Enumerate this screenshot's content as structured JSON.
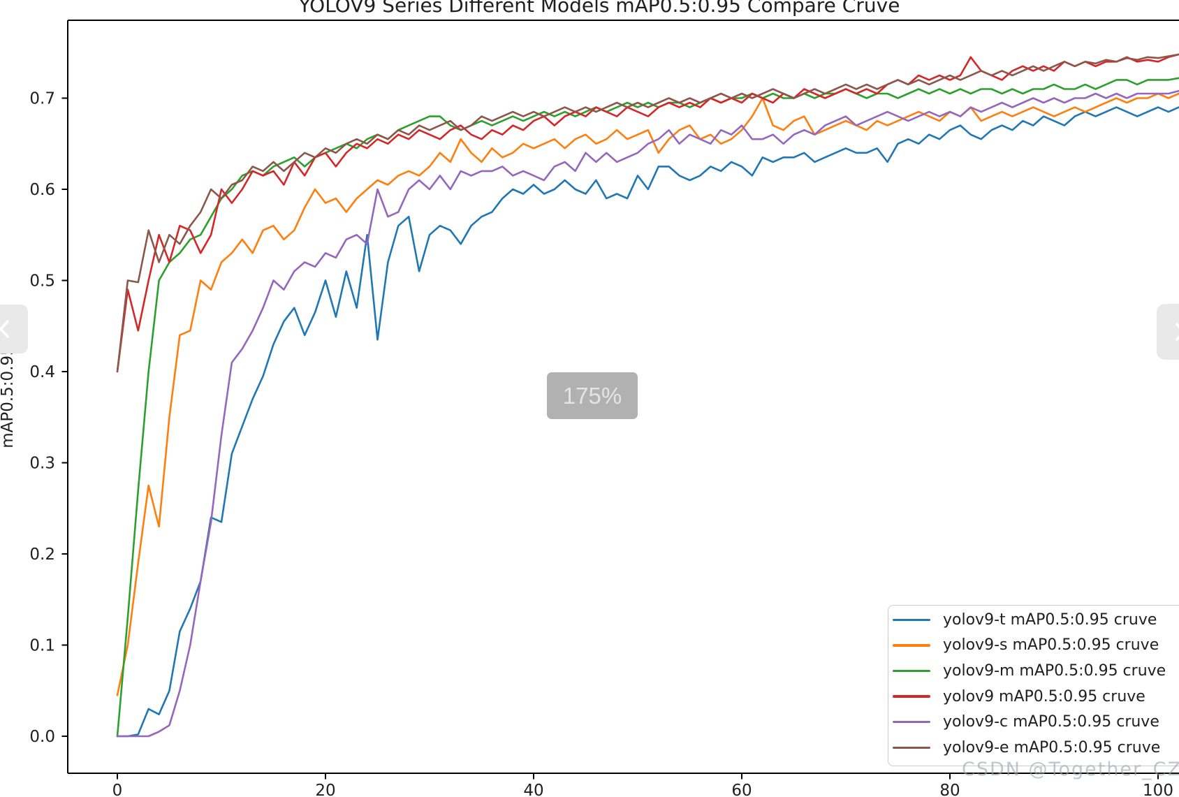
{
  "page": {
    "background": "#ffffff"
  },
  "zoom_overlay": {
    "text": "175%",
    "bg": "#b1b1b1",
    "fg": "#e4e4e4"
  },
  "watermark": {
    "text": "CSDN @Together_CZ",
    "color": "#98a0ab"
  },
  "chart_data": {
    "type": "line",
    "title": "YOLOV9 Series Different Models mAP0.5:0.95 Compare Cruve",
    "xlabel": "",
    "ylabel": "mAP0.5:0.95",
    "x_start": 0,
    "x_step": 1,
    "x_ticks": [
      0,
      20,
      40,
      60,
      80,
      100
    ],
    "y_ticks": [
      0.0,
      0.1,
      0.2,
      0.3,
      0.4,
      0.5,
      0.6,
      0.7
    ],
    "xlim": [
      -5,
      102
    ],
    "ylim": [
      -0.04,
      0.79
    ],
    "grid": false,
    "legend_position": "lower right",
    "series": [
      {
        "name": "yolov9-t",
        "label": "yolov9-t mAP0.5:0.95 cruve",
        "color": "#1f77b4",
        "values": [
          0.0,
          0.0,
          0.002,
          0.03,
          0.024,
          0.05,
          0.115,
          0.14,
          0.17,
          0.24,
          0.235,
          0.31,
          0.34,
          0.37,
          0.395,
          0.43,
          0.455,
          0.47,
          0.44,
          0.465,
          0.5,
          0.46,
          0.51,
          0.47,
          0.55,
          0.435,
          0.52,
          0.56,
          0.57,
          0.51,
          0.55,
          0.56,
          0.555,
          0.54,
          0.56,
          0.57,
          0.575,
          0.59,
          0.6,
          0.595,
          0.605,
          0.595,
          0.6,
          0.61,
          0.6,
          0.595,
          0.61,
          0.59,
          0.595,
          0.59,
          0.615,
          0.6,
          0.625,
          0.625,
          0.615,
          0.61,
          0.615,
          0.625,
          0.62,
          0.63,
          0.625,
          0.615,
          0.635,
          0.63,
          0.635,
          0.635,
          0.64,
          0.63,
          0.635,
          0.64,
          0.645,
          0.64,
          0.64,
          0.645,
          0.63,
          0.65,
          0.655,
          0.65,
          0.66,
          0.655,
          0.665,
          0.67,
          0.66,
          0.655,
          0.665,
          0.67,
          0.665,
          0.675,
          0.67,
          0.68,
          0.675,
          0.67,
          0.68,
          0.685,
          0.68,
          0.685,
          0.69,
          0.685,
          0.68,
          0.685,
          0.69,
          0.685,
          0.69
        ]
      },
      {
        "name": "yolov9-s",
        "label": "yolov9-s mAP0.5:0.95 cruve",
        "color": "#ff7f0e",
        "values": [
          0.045,
          0.1,
          0.19,
          0.275,
          0.23,
          0.35,
          0.44,
          0.445,
          0.5,
          0.49,
          0.52,
          0.53,
          0.545,
          0.53,
          0.555,
          0.56,
          0.545,
          0.555,
          0.58,
          0.6,
          0.585,
          0.59,
          0.575,
          0.59,
          0.6,
          0.61,
          0.605,
          0.615,
          0.62,
          0.615,
          0.625,
          0.64,
          0.63,
          0.655,
          0.64,
          0.63,
          0.645,
          0.635,
          0.64,
          0.65,
          0.645,
          0.65,
          0.655,
          0.645,
          0.655,
          0.66,
          0.65,
          0.655,
          0.665,
          0.655,
          0.66,
          0.665,
          0.64,
          0.655,
          0.665,
          0.67,
          0.655,
          0.66,
          0.65,
          0.655,
          0.665,
          0.68,
          0.7,
          0.67,
          0.665,
          0.675,
          0.68,
          0.66,
          0.665,
          0.67,
          0.675,
          0.67,
          0.665,
          0.675,
          0.67,
          0.675,
          0.68,
          0.685,
          0.68,
          0.675,
          0.685,
          0.68,
          0.69,
          0.675,
          0.68,
          0.685,
          0.68,
          0.685,
          0.69,
          0.685,
          0.68,
          0.685,
          0.69,
          0.685,
          0.69,
          0.695,
          0.7,
          0.695,
          0.7,
          0.7,
          0.705,
          0.7,
          0.705
        ]
      },
      {
        "name": "yolov9-m",
        "label": "yolov9-m mAP0.5:0.95 cruve",
        "color": "#2ca02c",
        "values": [
          0.0,
          0.13,
          0.27,
          0.4,
          0.5,
          0.52,
          0.53,
          0.545,
          0.55,
          0.57,
          0.59,
          0.6,
          0.615,
          0.62,
          0.615,
          0.625,
          0.63,
          0.635,
          0.625,
          0.635,
          0.64,
          0.645,
          0.65,
          0.645,
          0.655,
          0.66,
          0.655,
          0.665,
          0.67,
          0.675,
          0.68,
          0.68,
          0.67,
          0.665,
          0.67,
          0.675,
          0.67,
          0.675,
          0.68,
          0.675,
          0.68,
          0.685,
          0.68,
          0.685,
          0.68,
          0.685,
          0.69,
          0.685,
          0.69,
          0.695,
          0.69,
          0.695,
          0.69,
          0.695,
          0.695,
          0.69,
          0.695,
          0.7,
          0.695,
          0.7,
          0.7,
          0.705,
          0.7,
          0.705,
          0.7,
          0.7,
          0.705,
          0.7,
          0.705,
          0.705,
          0.71,
          0.705,
          0.7,
          0.705,
          0.705,
          0.7,
          0.705,
          0.71,
          0.705,
          0.71,
          0.705,
          0.71,
          0.705,
          0.71,
          0.71,
          0.705,
          0.71,
          0.705,
          0.71,
          0.71,
          0.715,
          0.71,
          0.71,
          0.715,
          0.71,
          0.715,
          0.72,
          0.72,
          0.715,
          0.72,
          0.72,
          0.72,
          0.722
        ]
      },
      {
        "name": "yolov9",
        "label": "yolov9 mAP0.5:0.95 cruve",
        "color": "#d62728",
        "values": [
          0.4,
          0.49,
          0.445,
          0.5,
          0.55,
          0.52,
          0.56,
          0.555,
          0.53,
          0.55,
          0.6,
          0.585,
          0.6,
          0.62,
          0.615,
          0.62,
          0.605,
          0.63,
          0.615,
          0.635,
          0.64,
          0.625,
          0.64,
          0.65,
          0.645,
          0.655,
          0.65,
          0.66,
          0.655,
          0.665,
          0.66,
          0.655,
          0.665,
          0.67,
          0.66,
          0.655,
          0.665,
          0.66,
          0.67,
          0.665,
          0.675,
          0.68,
          0.67,
          0.68,
          0.685,
          0.68,
          0.69,
          0.685,
          0.68,
          0.69,
          0.685,
          0.68,
          0.69,
          0.695,
          0.69,
          0.695,
          0.69,
          0.7,
          0.695,
          0.7,
          0.695,
          0.705,
          0.7,
          0.695,
          0.705,
          0.7,
          0.71,
          0.705,
          0.7,
          0.705,
          0.71,
          0.705,
          0.71,
          0.705,
          0.715,
          0.72,
          0.715,
          0.725,
          0.72,
          0.725,
          0.72,
          0.725,
          0.745,
          0.73,
          0.725,
          0.72,
          0.73,
          0.735,
          0.73,
          0.735,
          0.73,
          0.74,
          0.735,
          0.74,
          0.735,
          0.74,
          0.74,
          0.745,
          0.74,
          0.742,
          0.74,
          0.745,
          0.748
        ]
      },
      {
        "name": "yolov9-c",
        "label": "yolov9-c mAP0.5:0.95 cruve",
        "color": "#9467bd",
        "values": [
          0.0,
          0.0,
          0.0,
          0.0,
          0.005,
          0.012,
          0.05,
          0.1,
          0.17,
          0.235,
          0.33,
          0.41,
          0.425,
          0.445,
          0.47,
          0.5,
          0.49,
          0.51,
          0.52,
          0.515,
          0.53,
          0.525,
          0.545,
          0.55,
          0.54,
          0.6,
          0.57,
          0.575,
          0.6,
          0.61,
          0.6,
          0.615,
          0.6,
          0.62,
          0.615,
          0.62,
          0.62,
          0.625,
          0.615,
          0.62,
          0.615,
          0.61,
          0.625,
          0.63,
          0.62,
          0.64,
          0.63,
          0.64,
          0.63,
          0.635,
          0.64,
          0.65,
          0.655,
          0.665,
          0.65,
          0.66,
          0.655,
          0.65,
          0.665,
          0.66,
          0.67,
          0.655,
          0.655,
          0.66,
          0.65,
          0.66,
          0.665,
          0.66,
          0.67,
          0.675,
          0.68,
          0.67,
          0.675,
          0.68,
          0.685,
          0.68,
          0.675,
          0.68,
          0.685,
          0.68,
          0.685,
          0.68,
          0.69,
          0.685,
          0.69,
          0.695,
          0.69,
          0.695,
          0.7,
          0.695,
          0.7,
          0.695,
          0.7,
          0.7,
          0.705,
          0.7,
          0.705,
          0.7,
          0.705,
          0.705,
          0.705,
          0.705,
          0.708
        ]
      },
      {
        "name": "yolov9-e",
        "label": "yolov9-e mAP0.5:0.95 cruve",
        "color": "#8c564b",
        "values": [
          0.4,
          0.5,
          0.498,
          0.555,
          0.52,
          0.55,
          0.54,
          0.56,
          0.575,
          0.6,
          0.59,
          0.605,
          0.61,
          0.625,
          0.62,
          0.63,
          0.62,
          0.63,
          0.64,
          0.635,
          0.645,
          0.64,
          0.65,
          0.655,
          0.65,
          0.66,
          0.655,
          0.665,
          0.66,
          0.67,
          0.665,
          0.67,
          0.675,
          0.665,
          0.67,
          0.68,
          0.675,
          0.68,
          0.685,
          0.68,
          0.685,
          0.68,
          0.685,
          0.69,
          0.685,
          0.69,
          0.685,
          0.69,
          0.695,
          0.69,
          0.695,
          0.69,
          0.695,
          0.7,
          0.695,
          0.7,
          0.695,
          0.7,
          0.705,
          0.7,
          0.705,
          0.7,
          0.705,
          0.71,
          0.705,
          0.7,
          0.705,
          0.71,
          0.705,
          0.71,
          0.715,
          0.71,
          0.715,
          0.71,
          0.715,
          0.72,
          0.715,
          0.72,
          0.715,
          0.72,
          0.725,
          0.72,
          0.725,
          0.73,
          0.725,
          0.73,
          0.725,
          0.73,
          0.735,
          0.73,
          0.735,
          0.74,
          0.735,
          0.74,
          0.738,
          0.742,
          0.74,
          0.744,
          0.742,
          0.745,
          0.744,
          0.746,
          0.748
        ]
      }
    ]
  }
}
